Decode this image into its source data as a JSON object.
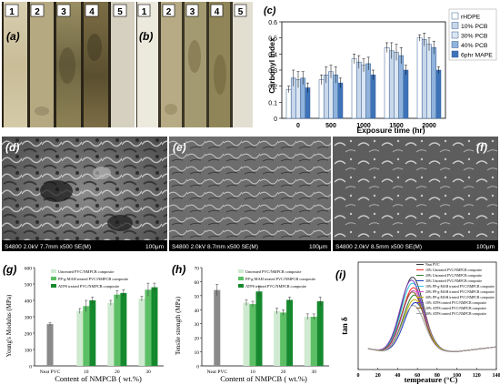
{
  "panels": {
    "a": {
      "label": "(a)",
      "strip_numbers": [
        "1",
        "2",
        "3",
        "4",
        "5"
      ]
    },
    "b": {
      "label": "(b)",
      "strip_numbers": [
        "1",
        "2",
        "3",
        "4",
        "5"
      ]
    },
    "d": {
      "label": "(d)",
      "caption": "S4800 2.0kV 7.7mm x500 SE(M)",
      "scale": "100μm"
    },
    "e": {
      "label": "(e)",
      "caption": "S4800 2.0kV 8.7mm x500 SE(M)",
      "scale": "100μm"
    },
    "f": {
      "label": "(f)",
      "caption": "S4800 2.0kV 8.5mm x500 SE(M)",
      "scale": "100μm"
    }
  },
  "chart_data": [
    {
      "id": "c",
      "label": "(c)",
      "type": "bar",
      "xlabel": "Exposure time (hr)",
      "ylabel": "Carbonyl Index",
      "ylim": [
        0,
        0.6
      ],
      "yticks": [
        "0",
        "0.1",
        "0.2",
        "0.3",
        "0.4",
        "0.5",
        "0.6"
      ],
      "categories": [
        "0",
        "500",
        "1000",
        "1500",
        "2000"
      ],
      "series": [
        {
          "name": "rHDPE",
          "values": [
            0.18,
            0.24,
            0.37,
            0.44,
            0.5
          ],
          "errors": [
            0.02,
            0.03,
            0.03,
            0.03,
            0.02
          ],
          "color": "#ffffff"
        },
        {
          "name": "10% PCB",
          "values": [
            0.25,
            0.27,
            0.35,
            0.42,
            0.49
          ],
          "errors": [
            0.05,
            0.05,
            0.04,
            0.05,
            0.04
          ],
          "color": "#c8d7ea"
        },
        {
          "name": "30% PCB",
          "values": [
            0.24,
            0.29,
            0.33,
            0.41,
            0.46
          ],
          "errors": [
            0.05,
            0.04,
            0.04,
            0.05,
            0.04
          ],
          "color": "#dbe6f3"
        },
        {
          "name": "40% PCB",
          "values": [
            0.25,
            0.27,
            0.34,
            0.39,
            0.44
          ],
          "errors": [
            0.04,
            0.05,
            0.04,
            0.05,
            0.04
          ],
          "color": "#8fb3dc"
        },
        {
          "name": "6phr MAPE",
          "values": [
            0.19,
            0.22,
            0.27,
            0.3,
            0.3
          ],
          "errors": [
            0.03,
            0.03,
            0.03,
            0.03,
            0.02
          ],
          "color": "#3e73b8"
        }
      ],
      "legend": "top-right"
    },
    {
      "id": "g",
      "label": "(g)",
      "type": "bar",
      "xlabel": "Content of NMPCB ( wt.%)",
      "ylabel": "Young's Modulus (MPa)",
      "ylim": [
        0,
        600
      ],
      "yticks": [
        "0",
        "100",
        "200",
        "300",
        "400",
        "500",
        "600"
      ],
      "categories": [
        "Neat PVC",
        "10",
        "20",
        "30"
      ],
      "series": [
        {
          "name": "Untreated PVC/NMPCB composite",
          "values": [
            255,
            335,
            385,
            410
          ],
          "errors": [
            8,
            15,
            15,
            15
          ],
          "color": "#cfead0"
        },
        {
          "name": "PP-g-MAH treated PVC/NMPCB composite",
          "values": [
            null,
            365,
            435,
            465
          ],
          "errors": [
            null,
            35,
            25,
            40
          ],
          "color": "#5cbf65"
        },
        {
          "name": "ATPS treated PVC/NMPCB composite",
          "values": [
            null,
            400,
            445,
            480
          ],
          "errors": [
            null,
            20,
            20,
            25
          ],
          "color": "#16892e"
        }
      ],
      "neat_color": "#8a8a8a",
      "legend": "top-left"
    },
    {
      "id": "h",
      "label": "(h)",
      "type": "bar",
      "xlabel": "Content of NMPCB ( wt.%)",
      "ylabel": "Tensile strength (MPa)",
      "ylim": [
        0,
        70
      ],
      "yticks": [
        "0",
        "10",
        "20",
        "30",
        "40",
        "50",
        "60",
        "70"
      ],
      "categories": [
        "Neat PVC",
        "10",
        "20",
        "30"
      ],
      "series": [
        {
          "name": "Untreated PVC/NMPCB composite",
          "values": [
            54,
            45,
            39,
            35
          ],
          "errors": [
            4,
            2,
            2,
            2
          ],
          "color": "#cfead0"
        },
        {
          "name": "PP-g-MAH treated PVC/NMPCB composite",
          "values": [
            null,
            44,
            38,
            35
          ],
          "errors": [
            null,
            2,
            2,
            2
          ],
          "color": "#5cbf65"
        },
        {
          "name": "ATPS treated PVC/NMPCB composite",
          "values": [
            null,
            53,
            47,
            46
          ],
          "errors": [
            null,
            4,
            2,
            3
          ],
          "color": "#16892e"
        }
      ],
      "neat_color": "#8a8a8a",
      "legend": "top-center"
    },
    {
      "id": "i",
      "label": "(i)",
      "type": "line",
      "xlabel": "tempeature (°C)",
      "ylabel": "tan δ",
      "xlim": [
        0,
        140
      ],
      "xticks": [
        "0",
        "20",
        "40",
        "60",
        "80",
        "100",
        "120",
        "140"
      ],
      "series": [
        {
          "name": "Neat PVC",
          "peak_x": 55,
          "peak_y": 0.62,
          "color": "#3a3a3a"
        },
        {
          "name": "10% Untreated PVC/NMPCB composite",
          "peak_x": 56,
          "peak_y": 0.55,
          "color": "#ff2a2a"
        },
        {
          "name": "20% Untreated PVC/NMPCB composite",
          "peak_x": 57,
          "peak_y": 0.5,
          "color": "#2f7d32"
        },
        {
          "name": "30% Untreated PVC/NMPCB composite",
          "peak_x": 58,
          "peak_y": 0.45,
          "color": "#1e3fbf"
        },
        {
          "name": "10% PP-g-MAH treated PVC/NMPCB composite",
          "peak_x": 55,
          "peak_y": 0.58,
          "color": "#30c0e0"
        },
        {
          "name": "20% PP-g-MAH treated PVC/NMPCB composite",
          "peak_x": 56,
          "peak_y": 0.53,
          "color": "#d050d0"
        },
        {
          "name": "30% PP-g-MAH treated PVC/NMPCB composite",
          "peak_x": 57,
          "peak_y": 0.47,
          "color": "#c8b400"
        },
        {
          "name": "10% ATPS treated PVC/NMPCB composite",
          "peak_x": 54,
          "peak_y": 0.6,
          "color": "#7a40c0"
        },
        {
          "name": "20% ATPS treated PVC/NMPCB composite",
          "peak_x": 55,
          "peak_y": 0.52,
          "color": "#8a5a20"
        },
        {
          "name": "30% ATPS treated PVC/NMPCB composite",
          "peak_x": 56,
          "peak_y": 0.43,
          "color": "#a0a0a0"
        }
      ],
      "legend": "top-right"
    }
  ]
}
